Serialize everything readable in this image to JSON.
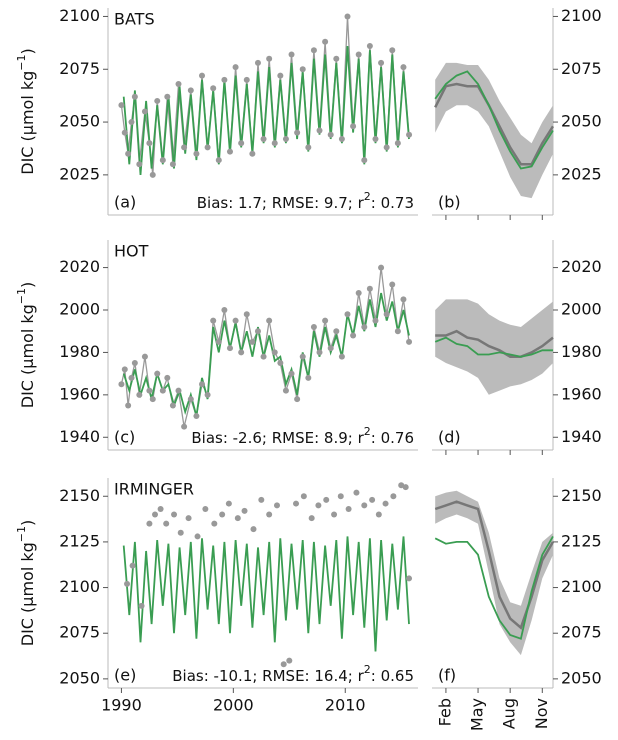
{
  "chart_data": [
    {
      "type": "line",
      "title": "BATS",
      "panel_label": "(a)",
      "stats": [
        "Bias: 1.7; RMSE: 9.7; r",
        "2",
        ": 0.73"
      ],
      "ylabel": [
        "DIC (μmol kg",
        "−1",
        ")"
      ],
      "xlim": [
        1988.8,
        2016.5
      ],
      "ylim": [
        2006,
        2104
      ],
      "yticks": [
        2025,
        2050,
        2075,
        2100
      ],
      "model": {
        "color": "#3a9d52",
        "x": [
          1990.2,
          1990.7,
          1991.2,
          1991.7,
          1992.2,
          1992.7,
          1993.2,
          1993.7,
          1994.2,
          1994.7,
          1995.2,
          1995.7,
          1996.2,
          1996.7,
          1997.2,
          1997.7,
          1998.2,
          1998.7,
          1999.2,
          1999.7,
          2000.2,
          2000.7,
          2001.2,
          2001.7,
          2002.2,
          2002.7,
          2003.2,
          2003.7,
          2004.2,
          2004.7,
          2005.2,
          2005.7,
          2006.2,
          2006.7,
          2007.2,
          2007.7,
          2008.2,
          2008.7,
          2009.2,
          2009.7,
          2010.2,
          2010.7,
          2011.2,
          2011.7,
          2012.2,
          2012.7,
          2013.2,
          2013.7,
          2014.2,
          2014.7,
          2015.2,
          2015.7
        ],
        "values": [
          2062,
          2030,
          2065,
          2025,
          2060,
          2028,
          2058,
          2030,
          2063,
          2028,
          2067,
          2035,
          2063,
          2032,
          2070,
          2037,
          2065,
          2030,
          2070,
          2035,
          2072,
          2038,
          2068,
          2035,
          2074,
          2040,
          2076,
          2038,
          2070,
          2040,
          2078,
          2042,
          2074,
          2036,
          2080,
          2044,
          2082,
          2042,
          2078,
          2040,
          2086,
          2045,
          2080,
          2030,
          2084,
          2040,
          2076,
          2036,
          2082,
          2038,
          2074,
          2042
        ]
      },
      "observations": {
        "color": "#999999",
        "connect": true,
        "x": [
          1990.0,
          1990.3,
          1990.6,
          1990.9,
          1991.2,
          1991.6,
          1992.1,
          1992.5,
          1992.8,
          1993.2,
          1993.7,
          1994.1,
          1994.6,
          1995.1,
          1995.6,
          1996.2,
          1996.7,
          1997.2,
          1997.7,
          1998.2,
          1998.7,
          1999.2,
          1999.7,
          2000.2,
          2000.7,
          2001.2,
          2001.7,
          2002.2,
          2002.7,
          2003.2,
          2003.7,
          2004.2,
          2004.7,
          2005.2,
          2005.7,
          2006.2,
          2006.7,
          2007.2,
          2007.7,
          2008.2,
          2008.7,
          2009.2,
          2009.7,
          2010.2,
          2010.7,
          2011.2,
          2011.7,
          2012.2,
          2012.7,
          2013.2,
          2013.7,
          2014.2,
          2014.7,
          2015.2,
          2015.7
        ],
        "values": [
          2058,
          2045,
          2035,
          2050,
          2062,
          2030,
          2055,
          2040,
          2025,
          2060,
          2032,
          2062,
          2030,
          2068,
          2038,
          2065,
          2035,
          2072,
          2038,
          2066,
          2032,
          2070,
          2036,
          2076,
          2040,
          2070,
          2035,
          2078,
          2042,
          2080,
          2040,
          2072,
          2042,
          2082,
          2045,
          2075,
          2038,
          2084,
          2046,
          2088,
          2044,
          2080,
          2042,
          2100,
          2048,
          2082,
          2032,
          2086,
          2042,
          2078,
          2038,
          2084,
          2040,
          2076,
          2044
        ]
      }
    },
    {
      "type": "climatology",
      "panel_label": "(b)",
      "xlim": [
        0.7,
        12.0
      ],
      "xticks": [
        2,
        5,
        8,
        11
      ],
      "ylim": [
        2006,
        2104
      ],
      "yticks": [
        2025,
        2050,
        2075,
        2100
      ],
      "x": [
        1,
        2,
        3,
        4,
        5,
        6,
        7,
        8,
        9,
        10,
        11,
        12
      ],
      "band": {
        "color": "#bbbbbb",
        "lower": [
          2045,
          2055,
          2058,
          2058,
          2055,
          2048,
          2036,
          2024,
          2015,
          2014,
          2025,
          2035
        ],
        "upper": [
          2070,
          2078,
          2078,
          2077,
          2077,
          2070,
          2060,
          2052,
          2044,
          2040,
          2050,
          2058
        ]
      },
      "observations": {
        "color": "#777777",
        "values": [
          2057,
          2067,
          2068,
          2067,
          2067,
          2058,
          2048,
          2038,
          2030,
          2030,
          2040,
          2048
        ]
      },
      "model": {
        "color": "#3a9d52",
        "values": [
          2061,
          2068,
          2072,
          2074,
          2068,
          2058,
          2046,
          2036,
          2028,
          2029,
          2038,
          2046
        ]
      }
    },
    {
      "type": "line",
      "title": "HOT",
      "panel_label": "(c)",
      "stats": [
        "Bias: -2.6; RMSE: 8.9; r",
        "2",
        ": 0.76"
      ],
      "ylabel": [
        "DIC (μmol kg",
        "−1",
        ")"
      ],
      "xlim": [
        1988.8,
        2016.5
      ],
      "ylim": [
        1934,
        2033
      ],
      "yticks": [
        1940,
        1960,
        1980,
        2000,
        2020
      ],
      "model": {
        "color": "#3a9d52",
        "x": [
          1990.2,
          1990.7,
          1991.2,
          1991.7,
          1992.2,
          1992.7,
          1993.2,
          1993.7,
          1994.2,
          1994.7,
          1995.2,
          1995.7,
          1996.2,
          1996.7,
          1997.2,
          1997.7,
          1998.2,
          1998.7,
          1999.2,
          1999.7,
          2000.2,
          2000.7,
          2001.2,
          2001.7,
          2002.2,
          2002.7,
          2003.2,
          2003.7,
          2004.2,
          2004.7,
          2005.2,
          2005.7,
          2006.2,
          2006.7,
          2007.2,
          2007.7,
          2008.2,
          2008.7,
          2009.2,
          2009.7,
          2010.2,
          2010.7,
          2011.2,
          2011.7,
          2012.2,
          2012.7,
          2013.2,
          2013.7,
          2014.2,
          2014.7,
          2015.2,
          2015.7
        ],
        "values": [
          1970,
          1962,
          1972,
          1960,
          1968,
          1958,
          1970,
          1962,
          1965,
          1955,
          1962,
          1952,
          1960,
          1950,
          1968,
          1958,
          1992,
          1980,
          1995,
          1982,
          1994,
          1980,
          1990,
          1978,
          1992,
          1978,
          1988,
          1976,
          1978,
          1965,
          1972,
          1960,
          1980,
          1968,
          1990,
          1978,
          1992,
          1980,
          1988,
          1978,
          1998,
          1988,
          2002,
          1990,
          2005,
          1992,
          2008,
          1995,
          2004,
          1990,
          2000,
          1988
        ]
      },
      "observations": {
        "color": "#999999",
        "connect": true,
        "x": [
          1990.0,
          1990.3,
          1990.6,
          1990.9,
          1991.2,
          1991.6,
          1992.1,
          1992.5,
          1992.8,
          1993.2,
          1993.7,
          1994.1,
          1994.6,
          1995.1,
          1995.6,
          1996.2,
          1996.7,
          1997.2,
          1997.7,
          1998.2,
          1998.7,
          1999.2,
          1999.7,
          2000.2,
          2000.7,
          2001.2,
          2001.7,
          2002.2,
          2002.7,
          2003.2,
          2003.7,
          2004.2,
          2004.7,
          2005.2,
          2005.7,
          2006.2,
          2006.7,
          2007.2,
          2007.7,
          2008.2,
          2008.7,
          2009.2,
          2009.7,
          2010.2,
          2010.7,
          2011.2,
          2011.7,
          2012.2,
          2012.7,
          2013.2,
          2013.7,
          2014.2,
          2014.7,
          2015.2,
          2015.7
        ],
        "values": [
          1965,
          1972,
          1955,
          1968,
          1975,
          1960,
          1978,
          1962,
          1958,
          1970,
          1962,
          1968,
          1955,
          1962,
          1945,
          1958,
          1950,
          1965,
          1960,
          1995,
          1985,
          2000,
          1982,
          1995,
          1980,
          1998,
          1985,
          1990,
          1978,
          1995,
          1980,
          1975,
          1962,
          1970,
          1958,
          1978,
          1968,
          1992,
          1980,
          1995,
          1982,
          1990,
          1978,
          1998,
          1988,
          2008,
          1992,
          2010,
          1995,
          2020,
          1998,
          2012,
          1990,
          2005,
          1985
        ]
      }
    },
    {
      "type": "climatology",
      "panel_label": "(d)",
      "xlim": [
        0.7,
        12.0
      ],
      "xticks": [
        2,
        5,
        8,
        11
      ],
      "ylim": [
        1934,
        2033
      ],
      "yticks": [
        1940,
        1960,
        1980,
        2000,
        2020
      ],
      "x": [
        1,
        2,
        3,
        4,
        5,
        6,
        7,
        8,
        9,
        10,
        11,
        12
      ],
      "band": {
        "color": "#bbbbbb",
        "lower": [
          1978,
          1975,
          1973,
          1971,
          1968,
          1960,
          1962,
          1964,
          1965,
          1967,
          1970,
          1975
        ],
        "upper": [
          2000,
          2005,
          2005,
          2005,
          2003,
          1998,
          1995,
          1993,
          1992,
          1996,
          2000,
          2004
        ]
      },
      "observations": {
        "color": "#777777",
        "values": [
          1988,
          1988,
          1990,
          1987,
          1986,
          1983,
          1981,
          1978,
          1978,
          1980,
          1983,
          1987
        ]
      },
      "model": {
        "color": "#3a9d52",
        "values": [
          1985,
          1987,
          1984,
          1983,
          1979,
          1979,
          1980,
          1979,
          1978,
          1979,
          1981,
          1981
        ]
      }
    },
    {
      "type": "line",
      "title": "IRMINGER",
      "panel_label": "(e)",
      "stats": [
        "Bias: -10.1; RMSE: 16.4; r",
        "2",
        ": 0.65"
      ],
      "ylabel": [
        "DIC (μmol kg",
        "−1",
        ")"
      ],
      "xlim": [
        1988.8,
        2016.5
      ],
      "xticks": [
        1990,
        2000,
        2010
      ],
      "ylim": [
        2045,
        2160
      ],
      "yticks": [
        2050,
        2075,
        2100,
        2125,
        2150
      ],
      "model": {
        "color": "#3a9d52",
        "x": [
          1990.2,
          1990.7,
          1991.2,
          1991.7,
          1992.2,
          1992.7,
          1993.2,
          1993.7,
          1994.2,
          1994.7,
          1995.2,
          1995.7,
          1996.2,
          1996.7,
          1997.2,
          1997.7,
          1998.2,
          1998.7,
          1999.2,
          1999.7,
          2000.2,
          2000.7,
          2001.2,
          2001.7,
          2002.2,
          2002.7,
          2003.2,
          2003.7,
          2004.2,
          2004.7,
          2005.2,
          2005.7,
          2006.2,
          2006.7,
          2007.2,
          2007.7,
          2008.2,
          2008.7,
          2009.2,
          2009.7,
          2010.2,
          2010.7,
          2011.2,
          2011.7,
          2012.2,
          2012.7,
          2013.2,
          2013.7,
          2014.2,
          2014.7,
          2015.2,
          2015.7
        ],
        "values": [
          2123,
          2085,
          2125,
          2070,
          2120,
          2080,
          2126,
          2090,
          2124,
          2075,
          2122,
          2085,
          2125,
          2072,
          2127,
          2088,
          2123,
          2080,
          2125,
          2075,
          2126,
          2090,
          2124,
          2078,
          2122,
          2085,
          2125,
          2070,
          2127,
          2082,
          2124,
          2088,
          2126,
          2075,
          2125,
          2080,
          2123,
          2090,
          2126,
          2072,
          2128,
          2085,
          2125,
          2078,
          2127,
          2065,
          2126,
          2082,
          2124,
          2088,
          2128,
          2080
        ]
      },
      "observations": {
        "color": "#999999",
        "connect": false,
        "x": [
          1990.5,
          1991.0,
          1991.8,
          1992.5,
          1993.0,
          1993.5,
          1994.0,
          1994.7,
          1995.3,
          1996.0,
          1996.8,
          1997.5,
          1998.3,
          1999.0,
          1999.6,
          2000.4,
          2001.0,
          2001.8,
          2002.5,
          2003.2,
          2003.9,
          2004.5,
          2005.0,
          2005.6,
          2006.3,
          2007.0,
          2007.6,
          2008.3,
          2009.0,
          2009.6,
          2010.3,
          2011.0,
          2011.7,
          2012.4,
          2013.0,
          2013.6,
          2014.3,
          2015.0,
          2015.4,
          2015.7
        ],
        "values": [
          2102,
          2112,
          2090,
          2135,
          2140,
          2143,
          2135,
          2140,
          2130,
          2138,
          2128,
          2143,
          2135,
          2140,
          2146,
          2138,
          2142,
          2132,
          2148,
          2140,
          2145,
          2058,
          2060,
          2146,
          2150,
          2138,
          2145,
          2148,
          2140,
          2150,
          2143,
          2152,
          2145,
          2148,
          2140,
          2146,
          2150,
          2156,
          2155,
          2105
        ]
      }
    },
    {
      "type": "climatology",
      "panel_label": "(f)",
      "xlim": [
        0.7,
        12.0
      ],
      "xticks": [
        {
          "value": 2,
          "label": "Feb"
        },
        {
          "value": 5,
          "label": "May"
        },
        {
          "value": 8,
          "label": "Aug"
        },
        {
          "value": 11,
          "label": "Nov"
        }
      ],
      "ylim": [
        2045,
        2160
      ],
      "yticks": [
        2050,
        2075,
        2100,
        2125,
        2150
      ],
      "x": [
        1,
        2,
        3,
        4,
        5,
        6,
        7,
        8,
        9,
        10,
        11,
        12
      ],
      "band": {
        "color": "#bbbbbb",
        "lower": [
          2135,
          2138,
          2140,
          2138,
          2135,
          2108,
          2080,
          2070,
          2063,
          2082,
          2105,
          2118
        ],
        "upper": [
          2150,
          2152,
          2153,
          2150,
          2147,
          2130,
          2105,
          2092,
          2090,
          2108,
          2125,
          2130
        ]
      },
      "observations": {
        "color": "#777777",
        "values": [
          2143,
          2145,
          2147,
          2145,
          2143,
          2120,
          2095,
          2083,
          2078,
          2095,
          2115,
          2125
        ]
      },
      "model": {
        "color": "#3a9d52",
        "values": [
          2127,
          2124,
          2125,
          2125,
          2118,
          2095,
          2082,
          2074,
          2072,
          2098,
          2118,
          2128
        ]
      }
    }
  ]
}
